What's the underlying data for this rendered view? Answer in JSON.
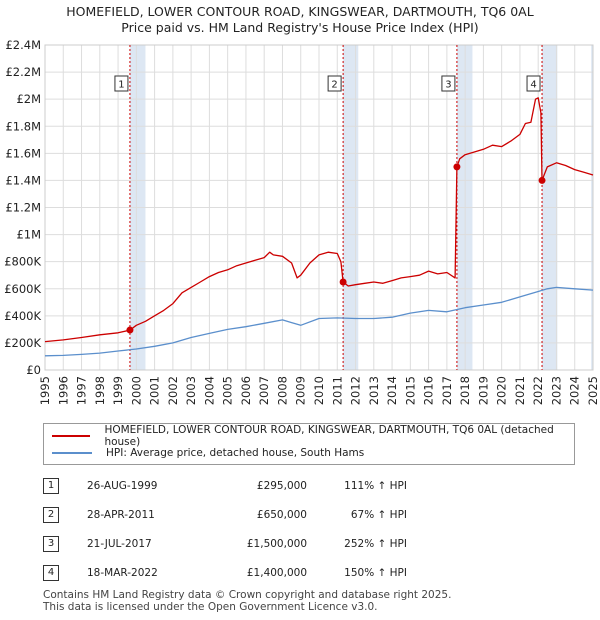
{
  "colors": {
    "property": "#cc0000",
    "hpi": "#5b8fcc",
    "grid": "#dddddd",
    "shade": "#dde7f3",
    "vline": "#cc0000"
  },
  "header": {
    "title": "HOMEFIELD, LOWER CONTOUR ROAD, KINGSWEAR, DARTMOUTH, TQ6 0AL",
    "subtitle": "Price paid vs. HM Land Registry's House Price Index (HPI)"
  },
  "legend": {
    "property_label": "HOMEFIELD, LOWER CONTOUR ROAD, KINGSWEAR, DARTMOUTH, TQ6 0AL (detached house)",
    "hpi_label": "HPI: Average price, detached house, South Hams"
  },
  "sales": [
    {
      "n": "1",
      "date": "26-AUG-1999",
      "price": "£295,000",
      "hpi": "111% ↑ HPI"
    },
    {
      "n": "2",
      "date": "28-APR-2011",
      "price": "£650,000",
      "hpi": "67% ↑ HPI"
    },
    {
      "n": "3",
      "date": "21-JUL-2017",
      "price": "£1,500,000",
      "hpi": "252% ↑ HPI"
    },
    {
      "n": "4",
      "date": "18-MAR-2022",
      "price": "£1,400,000",
      "hpi": "150% ↑ HPI"
    }
  ],
  "footer": {
    "line1": "Contains HM Land Registry data © Crown copyright and database right 2025.",
    "line2": "This data is licensed under the Open Government Licence v3.0."
  },
  "chart_data": {
    "type": "line",
    "xlim": [
      1995,
      2025
    ],
    "ylim": [
      0,
      2400000
    ],
    "ytick_values": [
      0,
      200000,
      400000,
      600000,
      800000,
      1000000,
      1200000,
      1400000,
      1600000,
      1800000,
      2000000,
      2200000,
      2400000
    ],
    "ytick_labels": [
      "£0",
      "£200K",
      "£400K",
      "£600K",
      "£800K",
      "£1M",
      "£1.2M",
      "£1.4M",
      "£1.6M",
      "£1.8M",
      "£2M",
      "£2.2M",
      "£2.4M"
    ],
    "xtick_labels": [
      "1995",
      "1996",
      "1997",
      "1998",
      "1999",
      "2000",
      "2001",
      "2002",
      "2003",
      "2004",
      "2005",
      "2006",
      "2007",
      "2008",
      "2009",
      "2010",
      "2011",
      "2012",
      "2013",
      "2014",
      "2015",
      "2016",
      "2017",
      "2018",
      "2019",
      "2020",
      "2021",
      "2022",
      "2023",
      "2024",
      "2025"
    ],
    "shaded_ranges": [
      [
        1999.65,
        2000.5
      ],
      [
        2011.32,
        2012.15
      ],
      [
        2017.55,
        2018.4
      ],
      [
        2022.21,
        2023.05
      ],
      [
        2024.9,
        2025
      ]
    ],
    "sale_markers": [
      {
        "label": "1",
        "x": 1999.65,
        "y": 295000
      },
      {
        "label": "2",
        "x": 2011.32,
        "y": 650000
      },
      {
        "label": "3",
        "x": 2017.55,
        "y": 1500000
      },
      {
        "label": "4",
        "x": 2022.21,
        "y": 1400000
      }
    ],
    "series": [
      {
        "name": "HOMEFIELD, LOWER CONTOUR ROAD, KINGSWEAR, DARTMOUTH, TQ6 0AL (detached house)",
        "x": [
          1995,
          1996,
          1997,
          1998,
          1999,
          1999.65,
          2000,
          2000.5,
          2001,
          2001.5,
          2002,
          2002.5,
          2003,
          2003.5,
          2004,
          2004.5,
          2005,
          2005.5,
          2006,
          2006.5,
          2007,
          2007.3,
          2007.5,
          2008,
          2008.5,
          2008.8,
          2009,
          2009.5,
          2010,
          2010.5,
          2011,
          2011.2,
          2011.32,
          2011.6,
          2012,
          2012.5,
          2013,
          2013.5,
          2014,
          2014.5,
          2015,
          2015.5,
          2016,
          2016.5,
          2017,
          2017.45,
          2017.55,
          2017.7,
          2018,
          2018.5,
          2019,
          2019.5,
          2020,
          2020.5,
          2021,
          2021.3,
          2021.6,
          2021.85,
          2022,
          2022.15,
          2022.21,
          2022.5,
          2023,
          2023.5,
          2024,
          2024.5,
          2025
        ],
        "y": [
          210000,
          222000,
          240000,
          260000,
          275000,
          295000,
          330000,
          360000,
          400000,
          440000,
          490000,
          570000,
          610000,
          650000,
          690000,
          720000,
          740000,
          770000,
          790000,
          810000,
          830000,
          870000,
          850000,
          840000,
          790000,
          680000,
          700000,
          790000,
          850000,
          870000,
          860000,
          800000,
          650000,
          620000,
          630000,
          640000,
          650000,
          640000,
          660000,
          680000,
          690000,
          700000,
          730000,
          710000,
          720000,
          680000,
          1500000,
          1560000,
          1590000,
          1610000,
          1630000,
          1660000,
          1650000,
          1690000,
          1740000,
          1820000,
          1830000,
          2000000,
          2010000,
          1900000,
          1400000,
          1500000,
          1530000,
          1510000,
          1480000,
          1460000,
          1440000
        ]
      },
      {
        "name": "HPI: Average price, detached house, South Hams",
        "x": [
          1995,
          1996,
          1997,
          1998,
          1999,
          2000,
          2001,
          2002,
          2003,
          2004,
          2005,
          2006,
          2007,
          2008,
          2008.5,
          2009,
          2010,
          2011,
          2012,
          2013,
          2014,
          2015,
          2016,
          2017,
          2018,
          2019,
          2020,
          2021,
          2022,
          2022.5,
          2023,
          2024,
          2025
        ],
        "y": [
          105000,
          108000,
          115000,
          125000,
          140000,
          155000,
          175000,
          200000,
          240000,
          270000,
          300000,
          320000,
          345000,
          370000,
          350000,
          330000,
          380000,
          385000,
          380000,
          380000,
          390000,
          420000,
          440000,
          430000,
          460000,
          480000,
          500000,
          540000,
          580000,
          600000,
          610000,
          600000,
          590000
        ]
      }
    ]
  }
}
